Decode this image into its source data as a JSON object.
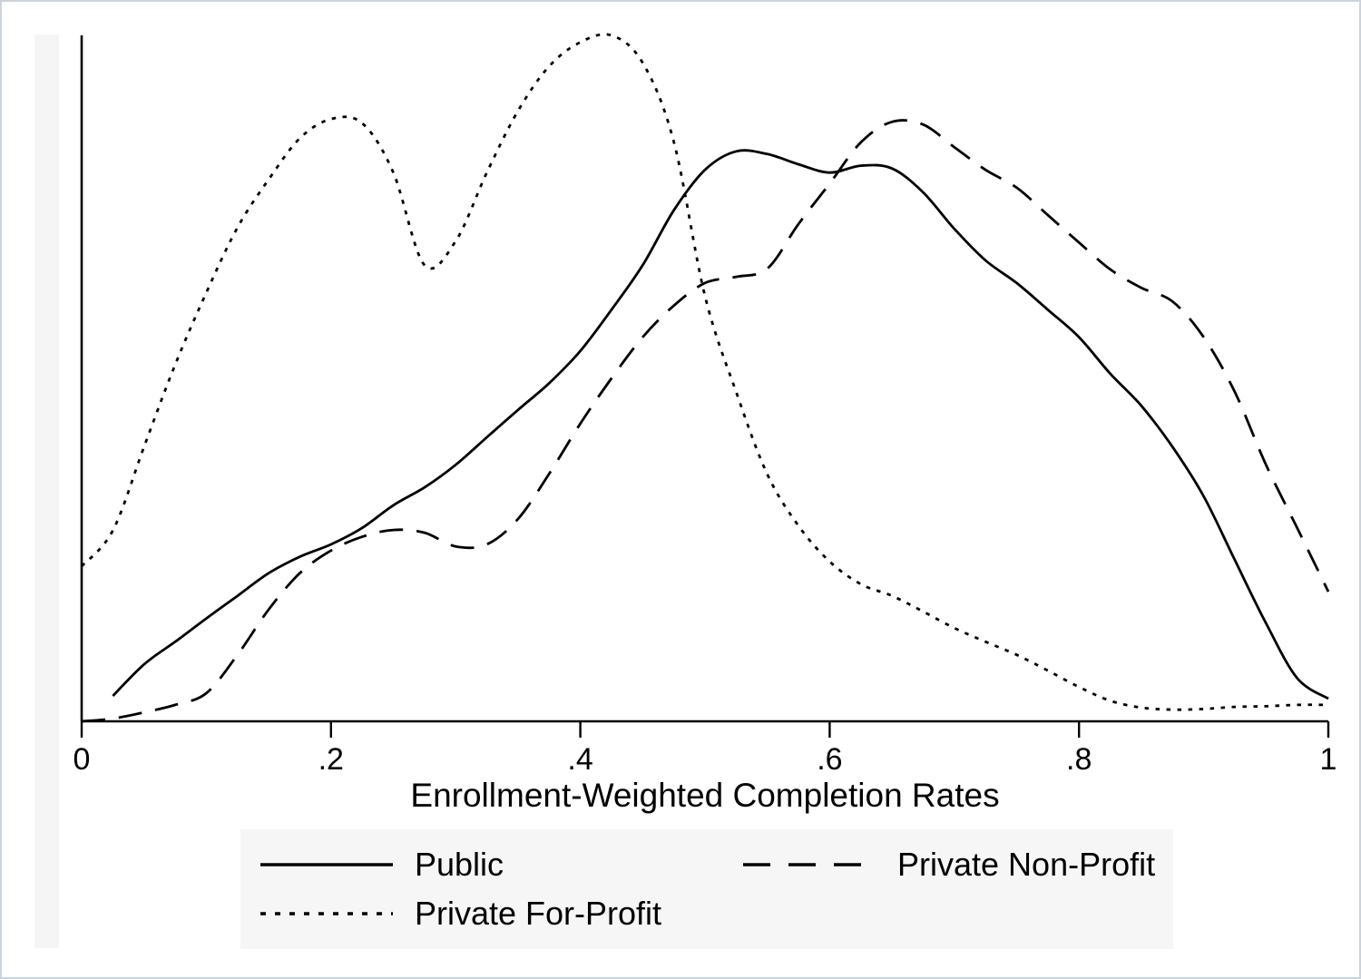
{
  "chart_data": {
    "type": "line",
    "subtype": "kernel-density",
    "title": "",
    "xlabel": "Enrollment-Weighted Completion Rates",
    "ylabel": "",
    "xlim": [
      0,
      1
    ],
    "ylim": [
      0,
      1
    ],
    "grid": false,
    "legend_position": "bottom",
    "line_color": "#000000",
    "x_ticks": [
      0,
      0.2,
      0.4,
      0.6,
      0.8,
      1
    ],
    "x_tick_labels": [
      "0",
      ".2",
      ".4",
      ".6",
      ".8",
      "1"
    ],
    "series": [
      {
        "name": "Public",
        "style": "solid",
        "x": [
          0.025,
          0.05,
          0.075,
          0.1,
          0.125,
          0.15,
          0.175,
          0.2,
          0.225,
          0.25,
          0.275,
          0.3,
          0.325,
          0.35,
          0.375,
          0.4,
          0.425,
          0.45,
          0.475,
          0.5,
          0.525,
          0.55,
          0.575,
          0.6,
          0.625,
          0.65,
          0.675,
          0.7,
          0.725,
          0.75,
          0.775,
          0.8,
          0.825,
          0.85,
          0.875,
          0.9,
          0.925,
          0.95,
          0.975,
          1
        ],
        "y": [
          0.037,
          0.083,
          0.116,
          0.15,
          0.183,
          0.216,
          0.24,
          0.258,
          0.282,
          0.315,
          0.341,
          0.374,
          0.414,
          0.454,
          0.493,
          0.54,
          0.6,
          0.665,
          0.745,
          0.804,
          0.831,
          0.827,
          0.812,
          0.8,
          0.81,
          0.806,
          0.771,
          0.718,
          0.672,
          0.639,
          0.6,
          0.56,
          0.507,
          0.46,
          0.4,
          0.328,
          0.235,
          0.143,
          0.063,
          0.033
        ]
      },
      {
        "name": "Private Non-Profit",
        "style": "dashed",
        "x": [
          0,
          0.025,
          0.05,
          0.075,
          0.1,
          0.125,
          0.15,
          0.175,
          0.2,
          0.225,
          0.25,
          0.275,
          0.3,
          0.325,
          0.35,
          0.375,
          0.4,
          0.425,
          0.45,
          0.475,
          0.5,
          0.525,
          0.55,
          0.575,
          0.6,
          0.625,
          0.65,
          0.675,
          0.7,
          0.725,
          0.75,
          0.775,
          0.8,
          0.825,
          0.85,
          0.875,
          0.9,
          0.925,
          0.95,
          0.975,
          1
        ],
        "y": [
          0,
          0.004,
          0.013,
          0.024,
          0.041,
          0.097,
          0.163,
          0.216,
          0.249,
          0.269,
          0.279,
          0.275,
          0.255,
          0.258,
          0.295,
          0.361,
          0.434,
          0.5,
          0.56,
          0.606,
          0.639,
          0.648,
          0.66,
          0.725,
          0.784,
          0.844,
          0.874,
          0.87,
          0.837,
          0.804,
          0.778,
          0.738,
          0.698,
          0.659,
          0.632,
          0.612,
          0.56,
          0.48,
          0.374,
          0.282,
          0.189
        ]
      },
      {
        "name": "Private For-Profit",
        "style": "dotted",
        "x": [
          0,
          0.025,
          0.05,
          0.075,
          0.1,
          0.125,
          0.15,
          0.175,
          0.2,
          0.225,
          0.25,
          0.275,
          0.3,
          0.325,
          0.35,
          0.375,
          0.4,
          0.425,
          0.45,
          0.475,
          0.5,
          0.525,
          0.55,
          0.575,
          0.6,
          0.625,
          0.65,
          0.675,
          0.7,
          0.725,
          0.75,
          0.775,
          0.8,
          0.825,
          0.85,
          0.875,
          0.9,
          0.925,
          0.95,
          0.975,
          1
        ],
        "y": [
          0.226,
          0.278,
          0.4,
          0.52,
          0.625,
          0.72,
          0.79,
          0.85,
          0.878,
          0.872,
          0.8,
          0.665,
          0.7,
          0.8,
          0.89,
          0.955,
          0.99,
          1,
          0.96,
          0.845,
          0.62,
          0.48,
          0.36,
          0.285,
          0.233,
          0.2,
          0.183,
          0.16,
          0.136,
          0.116,
          0.097,
          0.074,
          0.05,
          0.03,
          0.02,
          0.017,
          0.018,
          0.021,
          0.022,
          0.024,
          0.024
        ]
      }
    ],
    "legend": {
      "items": [
        {
          "label": "Public",
          "style": "solid"
        },
        {
          "label": "Private Non-Profit",
          "style": "dashed"
        },
        {
          "label": "Private For-Profit",
          "style": "dotted"
        }
      ]
    }
  }
}
